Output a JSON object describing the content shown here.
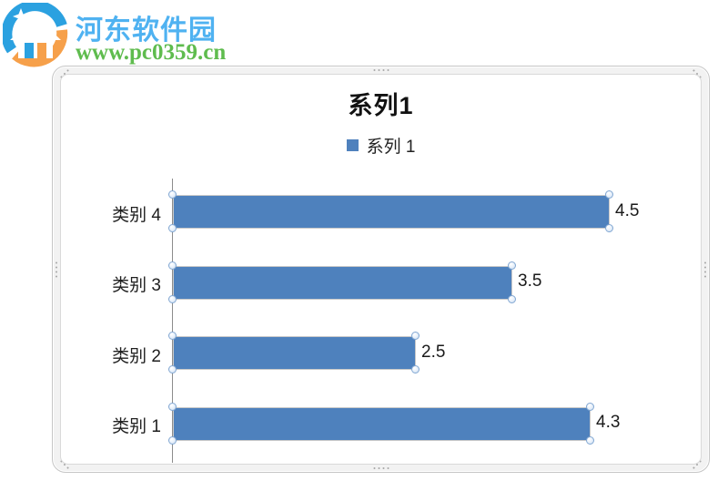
{
  "watermark": {
    "site_name": "河东软件园",
    "site_url": "www.pc0359.cn",
    "site_name_color": "#4fb2f1",
    "site_url_color": "#5fbc4e",
    "logo_icon": "house-circle-logo",
    "logo_blue": "#2ba1e0",
    "logo_orange": "#f6a04a"
  },
  "chart_data": {
    "type": "bar",
    "orientation": "horizontal",
    "title": "系列1",
    "legend": {
      "label": "系列 1",
      "swatch_color": "#4f81bd",
      "position": "top"
    },
    "categories": [
      "类别 4",
      "类别 3",
      "类别 2",
      "类别 1"
    ],
    "series": [
      {
        "name": "系列 1",
        "values": [
          4.5,
          3.5,
          2.5,
          4.3
        ]
      }
    ],
    "data_labels": [
      "4.5",
      "3.5",
      "2.5",
      "4.3"
    ],
    "bar_color": "#4e81bd",
    "axis_line_color": "#8c8c8c",
    "xlim": [
      0,
      4.5
    ],
    "grid": false,
    "selection_handles": true
  }
}
